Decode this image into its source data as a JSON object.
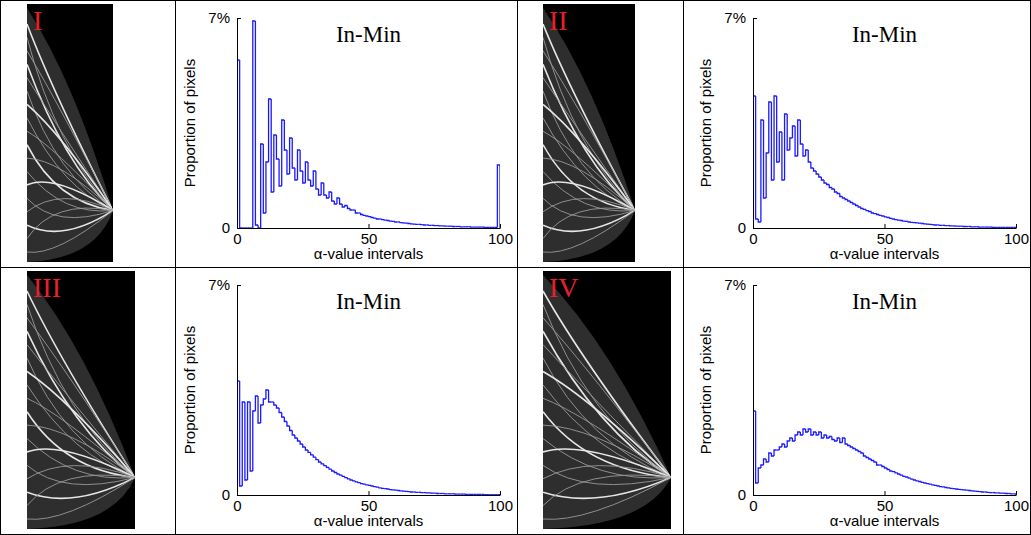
{
  "chart_data": [
    {
      "type": "histogram",
      "panel_label": "I",
      "title": "In-Min",
      "xlabel": "α-value intervals",
      "ylabel": "Proportion of pixels",
      "color": "#1a1aff",
      "xlim": [
        0,
        100
      ],
      "xticks": [
        0,
        50,
        100
      ],
      "ylim": [
        0,
        7
      ],
      "yticks": [
        0,
        {
          "value": 7,
          "label": "7%"
        }
      ],
      "bins": [
        0,
        1,
        2,
        3,
        4,
        5,
        6,
        7,
        8,
        9,
        10,
        11,
        12,
        13,
        14,
        15,
        16,
        17,
        18,
        19,
        20,
        21,
        22,
        23,
        24,
        25,
        26,
        27,
        28,
        29,
        30,
        31,
        32,
        33,
        34,
        35,
        36,
        37,
        38,
        39,
        40,
        41,
        42,
        43,
        44,
        45,
        46,
        47,
        48,
        49,
        50,
        51,
        52,
        53,
        54,
        55,
        56,
        57,
        58,
        59,
        60,
        61,
        62,
        63,
        64,
        65,
        66,
        67,
        68,
        69,
        70,
        71,
        72,
        73,
        74,
        75,
        76,
        77,
        78,
        79,
        80,
        81,
        82,
        83,
        84,
        85,
        86,
        87,
        88,
        89,
        90,
        91,
        92,
        93,
        94,
        95,
        96,
        97,
        98,
        99,
        100
      ],
      "values": [
        5.6,
        0,
        0,
        0,
        0,
        0,
        6.9,
        0.1,
        0,
        2.8,
        0.5,
        2.2,
        4.3,
        1.2,
        3.1,
        2.3,
        1.4,
        3.6,
        2.6,
        1.8,
        3.0,
        2.0,
        1.6,
        2.6,
        1.9,
        1.5,
        2.2,
        1.6,
        1.4,
        1.9,
        1.3,
        1.1,
        1.5,
        1.1,
        1.0,
        1.2,
        0.9,
        0.8,
        1.0,
        0.8,
        0.7,
        0.75,
        0.65,
        0.6,
        0.6,
        0.5,
        0.5,
        0.45,
        0.42,
        0.4,
        0.38,
        0.35,
        0.33,
        0.3,
        0.3,
        0.28,
        0.26,
        0.25,
        0.23,
        0.22,
        0.2,
        0.2,
        0.18,
        0.17,
        0.16,
        0.15,
        0.14,
        0.13,
        0.12,
        0.12,
        0.11,
        0.1,
        0.1,
        0.09,
        0.09,
        0.08,
        0.08,
        0.07,
        0.07,
        0.06,
        0.06,
        0.06,
        0.05,
        0.05,
        0.05,
        0.04,
        0.04,
        0.04,
        0.04,
        0.03,
        0.03,
        0.03,
        0.03,
        0.03,
        0.02,
        0.02,
        0.02,
        0.02,
        0.02,
        2.1
      ]
    },
    {
      "type": "histogram",
      "panel_label": "II",
      "title": "In-Min",
      "xlabel": "α-value intervals",
      "ylabel": "Proportion of pixels",
      "color": "#1a1aff",
      "xlim": [
        0,
        100
      ],
      "xticks": [
        0,
        50,
        100
      ],
      "ylim": [
        0,
        7
      ],
      "yticks": [
        0,
        {
          "value": 7,
          "label": "7%"
        }
      ],
      "bins": [
        0,
        1,
        2,
        3,
        4,
        5,
        6,
        7,
        8,
        9,
        10,
        11,
        12,
        13,
        14,
        15,
        16,
        17,
        18,
        19,
        20,
        21,
        22,
        23,
        24,
        25,
        26,
        27,
        28,
        29,
        30,
        31,
        32,
        33,
        34,
        35,
        36,
        37,
        38,
        39,
        40,
        41,
        42,
        43,
        44,
        45,
        46,
        47,
        48,
        49,
        50,
        51,
        52,
        53,
        54,
        55,
        56,
        57,
        58,
        59,
        60,
        61,
        62,
        63,
        64,
        65,
        66,
        67,
        68,
        69,
        70,
        71,
        72,
        73,
        74,
        75,
        76,
        77,
        78,
        79,
        80,
        81,
        82,
        83,
        84,
        85,
        86,
        87,
        88,
        89,
        90,
        91,
        92,
        93,
        94,
        95,
        96,
        97,
        98,
        99,
        100
      ],
      "values": [
        4.4,
        0.3,
        0.2,
        3.6,
        1.0,
        2.5,
        4.2,
        1.6,
        4.4,
        2.2,
        3.2,
        1.6,
        3.8,
        2.6,
        3.0,
        3.4,
        2.4,
        3.6,
        2.8,
        2.4,
        2.6,
        2.2,
        2.0,
        1.9,
        1.8,
        1.7,
        1.6,
        1.5,
        1.45,
        1.35,
        1.3,
        1.2,
        1.15,
        1.05,
        1.0,
        0.95,
        0.9,
        0.85,
        0.8,
        0.75,
        0.7,
        0.65,
        0.62,
        0.58,
        0.55,
        0.5,
        0.48,
        0.45,
        0.42,
        0.4,
        0.37,
        0.35,
        0.32,
        0.3,
        0.28,
        0.26,
        0.25,
        0.23,
        0.22,
        0.2,
        0.19,
        0.18,
        0.17,
        0.16,
        0.15,
        0.14,
        0.13,
        0.12,
        0.11,
        0.1,
        0.1,
        0.09,
        0.09,
        0.08,
        0.08,
        0.07,
        0.07,
        0.06,
        0.06,
        0.06,
        0.05,
        0.05,
        0.05,
        0.04,
        0.04,
        0.04,
        0.03,
        0.03,
        0.03,
        0.03,
        0.03,
        0.02,
        0.02,
        0.02,
        0.02,
        0.02,
        0.02,
        0.02,
        0.02,
        0.02
      ]
    },
    {
      "type": "histogram",
      "panel_label": "III",
      "title": "In-Min",
      "xlabel": "α-value intervals",
      "ylabel": "Proportion of pixels",
      "color": "#1a1aff",
      "xlim": [
        0,
        100
      ],
      "xticks": [
        0,
        50,
        100
      ],
      "ylim": [
        0,
        7
      ],
      "yticks": [
        0,
        {
          "value": 7,
          "label": "7%"
        }
      ],
      "bins": [
        0,
        1,
        2,
        3,
        4,
        5,
        6,
        7,
        8,
        9,
        10,
        11,
        12,
        13,
        14,
        15,
        16,
        17,
        18,
        19,
        20,
        21,
        22,
        23,
        24,
        25,
        26,
        27,
        28,
        29,
        30,
        31,
        32,
        33,
        34,
        35,
        36,
        37,
        38,
        39,
        40,
        41,
        42,
        43,
        44,
        45,
        46,
        47,
        48,
        49,
        50,
        51,
        52,
        53,
        54,
        55,
        56,
        57,
        58,
        59,
        60,
        61,
        62,
        63,
        64,
        65,
        66,
        67,
        68,
        69,
        70,
        71,
        72,
        73,
        74,
        75,
        76,
        77,
        78,
        79,
        80,
        81,
        82,
        83,
        84,
        85,
        86,
        87,
        88,
        89,
        90,
        91,
        92,
        93,
        94,
        95,
        96,
        97,
        98,
        99,
        100
      ],
      "values": [
        3.8,
        0.3,
        3.1,
        0.5,
        3.1,
        0.8,
        2.8,
        3.3,
        2.4,
        3.0,
        3.2,
        3.5,
        3.1,
        3.1,
        3.0,
        2.9,
        2.75,
        2.6,
        2.45,
        2.3,
        2.15,
        2.0,
        1.9,
        1.8,
        1.7,
        1.6,
        1.5,
        1.42,
        1.34,
        1.26,
        1.18,
        1.1,
        1.04,
        0.98,
        0.92,
        0.86,
        0.8,
        0.75,
        0.7,
        0.66,
        0.62,
        0.58,
        0.54,
        0.5,
        0.47,
        0.44,
        0.41,
        0.38,
        0.36,
        0.34,
        0.32,
        0.3,
        0.28,
        0.26,
        0.24,
        0.22,
        0.21,
        0.2,
        0.18,
        0.17,
        0.16,
        0.15,
        0.14,
        0.13,
        0.12,
        0.11,
        0.1,
        0.1,
        0.09,
        0.09,
        0.08,
        0.08,
        0.07,
        0.07,
        0.06,
        0.06,
        0.05,
        0.05,
        0.05,
        0.04,
        0.04,
        0.04,
        0.04,
        0.03,
        0.03,
        0.03,
        0.03,
        0.02,
        0.02,
        0.02,
        0.02,
        0.02,
        0.02,
        0.02,
        0.01,
        0.01,
        0.01,
        0.01,
        0.01,
        0.01
      ]
    },
    {
      "type": "histogram",
      "panel_label": "IV",
      "title": "In-Min",
      "xlabel": "α-value intervals",
      "ylabel": "Proportion of pixels",
      "color": "#1a1aff",
      "xlim": [
        0,
        100
      ],
      "xticks": [
        0,
        50,
        100
      ],
      "ylim": [
        0,
        7
      ],
      "yticks": [
        0,
        {
          "value": 7,
          "label": "7%"
        }
      ],
      "bins": [
        0,
        1,
        2,
        3,
        4,
        5,
        6,
        7,
        8,
        9,
        10,
        11,
        12,
        13,
        14,
        15,
        16,
        17,
        18,
        19,
        20,
        21,
        22,
        23,
        24,
        25,
        26,
        27,
        28,
        29,
        30,
        31,
        32,
        33,
        34,
        35,
        36,
        37,
        38,
        39,
        40,
        41,
        42,
        43,
        44,
        45,
        46,
        47,
        48,
        49,
        50,
        51,
        52,
        53,
        54,
        55,
        56,
        57,
        58,
        59,
        60,
        61,
        62,
        63,
        64,
        65,
        66,
        67,
        68,
        69,
        70,
        71,
        72,
        73,
        74,
        75,
        76,
        77,
        78,
        79,
        80,
        81,
        82,
        83,
        84,
        85,
        86,
        87,
        88,
        89,
        90,
        91,
        92,
        93,
        94,
        95,
        96,
        97,
        98,
        99,
        100
      ],
      "values": [
        2.8,
        0.4,
        0.9,
        1.0,
        1.2,
        1.1,
        1.4,
        1.3,
        1.5,
        1.5,
        1.6,
        1.7,
        1.6,
        1.8,
        1.9,
        1.8,
        2.0,
        2.1,
        2.0,
        2.2,
        2.1,
        2.2,
        2.0,
        2.1,
        2.0,
        2.1,
        1.9,
        2.0,
        1.9,
        1.95,
        1.85,
        1.8,
        1.9,
        1.75,
        1.9,
        1.7,
        1.65,
        1.6,
        1.55,
        1.5,
        1.45,
        1.4,
        1.3,
        1.25,
        1.2,
        1.15,
        1.1,
        1.0,
        1.0,
        0.95,
        0.9,
        0.85,
        0.8,
        0.78,
        0.74,
        0.7,
        0.66,
        0.62,
        0.6,
        0.56,
        0.53,
        0.5,
        0.47,
        0.45,
        0.42,
        0.4,
        0.38,
        0.36,
        0.34,
        0.32,
        0.3,
        0.28,
        0.27,
        0.25,
        0.24,
        0.22,
        0.21,
        0.2,
        0.19,
        0.18,
        0.17,
        0.16,
        0.15,
        0.14,
        0.13,
        0.12,
        0.11,
        0.1,
        0.1,
        0.09,
        0.08,
        0.08,
        0.07,
        0.07,
        0.06,
        0.06,
        0.05,
        0.05,
        0.04,
        0.04
      ]
    }
  ]
}
